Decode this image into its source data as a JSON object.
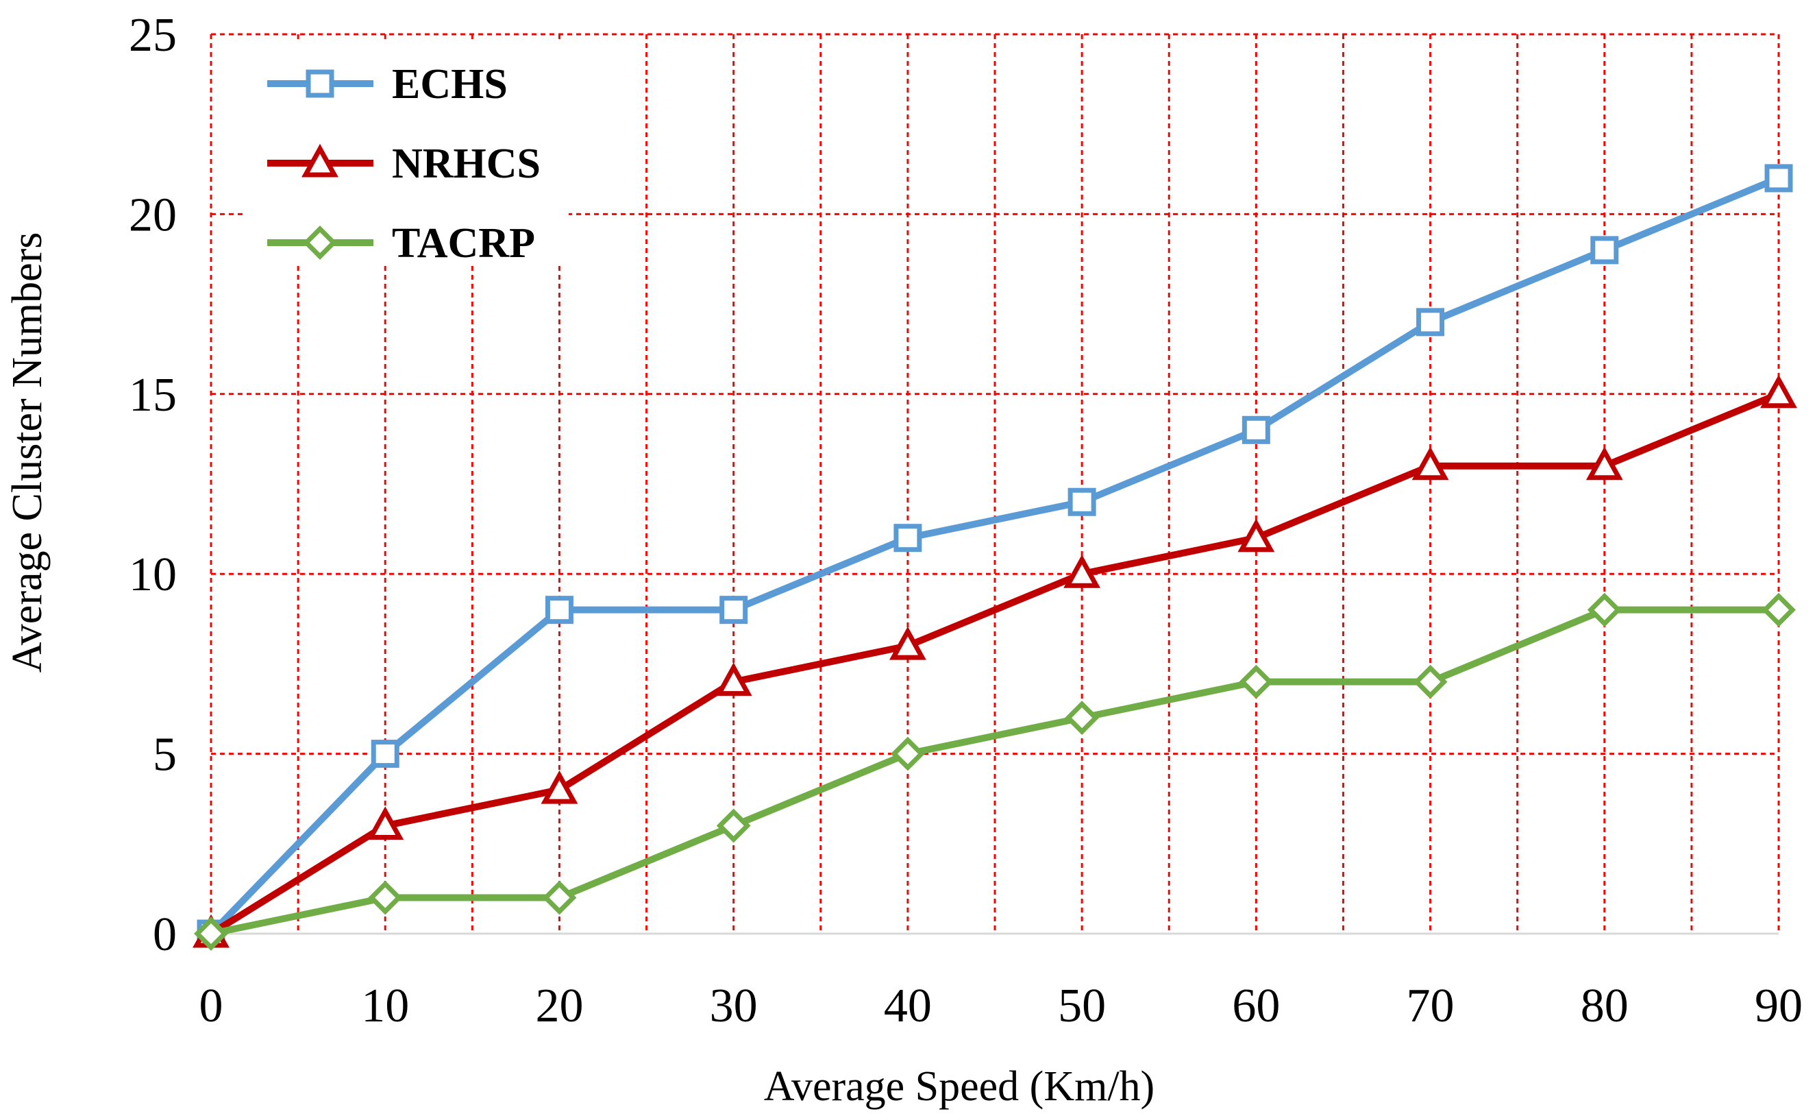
{
  "chart_data": {
    "type": "line",
    "xlabel": "Average Speed (Km/h)",
    "ylabel": "Average Cluster Numbers",
    "xlim": [
      0,
      90
    ],
    "ylim": [
      0,
      25
    ],
    "x_ticks": [
      0,
      10,
      20,
      30,
      40,
      50,
      60,
      70,
      80,
      90
    ],
    "y_ticks": [
      0,
      5,
      10,
      15,
      20,
      25
    ],
    "grid": true,
    "grid_color": "#ff0000",
    "legend_position": "top-left",
    "x": [
      0,
      10,
      20,
      30,
      40,
      50,
      60,
      70,
      80,
      90
    ],
    "series": [
      {
        "name": "ECHS",
        "values": [
          0,
          5,
          9,
          9,
          11,
          12,
          14,
          17,
          19,
          21
        ],
        "color": "#5b9bd5",
        "marker": "square"
      },
      {
        "name": "NRHCS",
        "values": [
          0,
          3,
          4,
          7,
          8,
          10,
          11,
          13,
          13,
          15
        ],
        "color": "#c00000",
        "marker": "triangle"
      },
      {
        "name": "TACRP",
        "values": [
          0,
          1,
          1,
          3,
          5,
          6,
          7,
          7,
          9,
          9
        ],
        "color": "#70ad47",
        "marker": "diamond"
      }
    ]
  }
}
